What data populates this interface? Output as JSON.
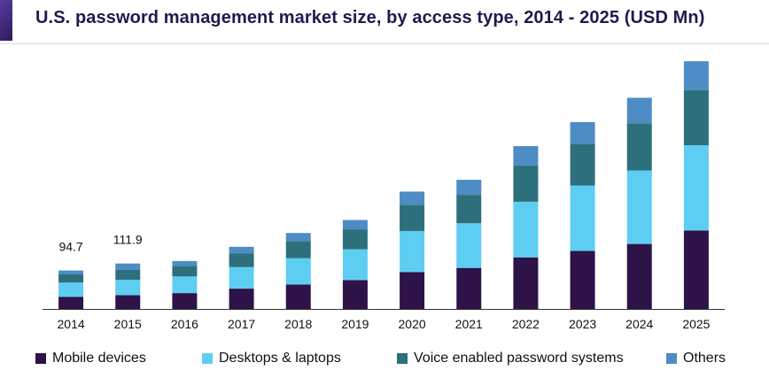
{
  "title": "U.S. password management market size, by access type, 2014 - 2025 (USD Mn)",
  "chart_data": {
    "type": "bar",
    "stacked": true,
    "title": "U.S. password management market size, by access type, 2014 - 2025 (USD Mn)",
    "categories": [
      "2014",
      "2015",
      "2016",
      "2017",
      "2018",
      "2019",
      "2020",
      "2021",
      "2022",
      "2023",
      "2024",
      "2025"
    ],
    "series": [
      {
        "name": "Mobile devices",
        "color": "#2d1347",
        "values": [
          30,
          34,
          39,
          50,
          60,
          71,
          91,
          101,
          127,
          143,
          160,
          193
        ]
      },
      {
        "name": "Desktops & laptops",
        "color": "#5ecdf2",
        "values": [
          35,
          38,
          41,
          53,
          65,
          76,
          101,
          110,
          137,
          161,
          181,
          210
        ]
      },
      {
        "name": "Voice enabled password systems",
        "color": "#2e6f7c",
        "values": [
          20,
          24,
          26,
          34,
          42,
          49,
          64,
          70,
          89,
          103,
          116,
          136
        ]
      },
      {
        "name": "Others",
        "color": "#4d8cc4",
        "values": [
          9.7,
          15.9,
          12,
          16,
          20,
          23,
          33,
          37,
          48,
          53,
          63,
          71
        ]
      }
    ],
    "annotations": [
      {
        "category": "2014",
        "text": "94.7"
      },
      {
        "category": "2015",
        "text": "111.9"
      }
    ],
    "xlabel": "",
    "ylabel": "",
    "ylim": [
      0,
      630
    ],
    "grid": false,
    "legend_position": "bottom"
  }
}
